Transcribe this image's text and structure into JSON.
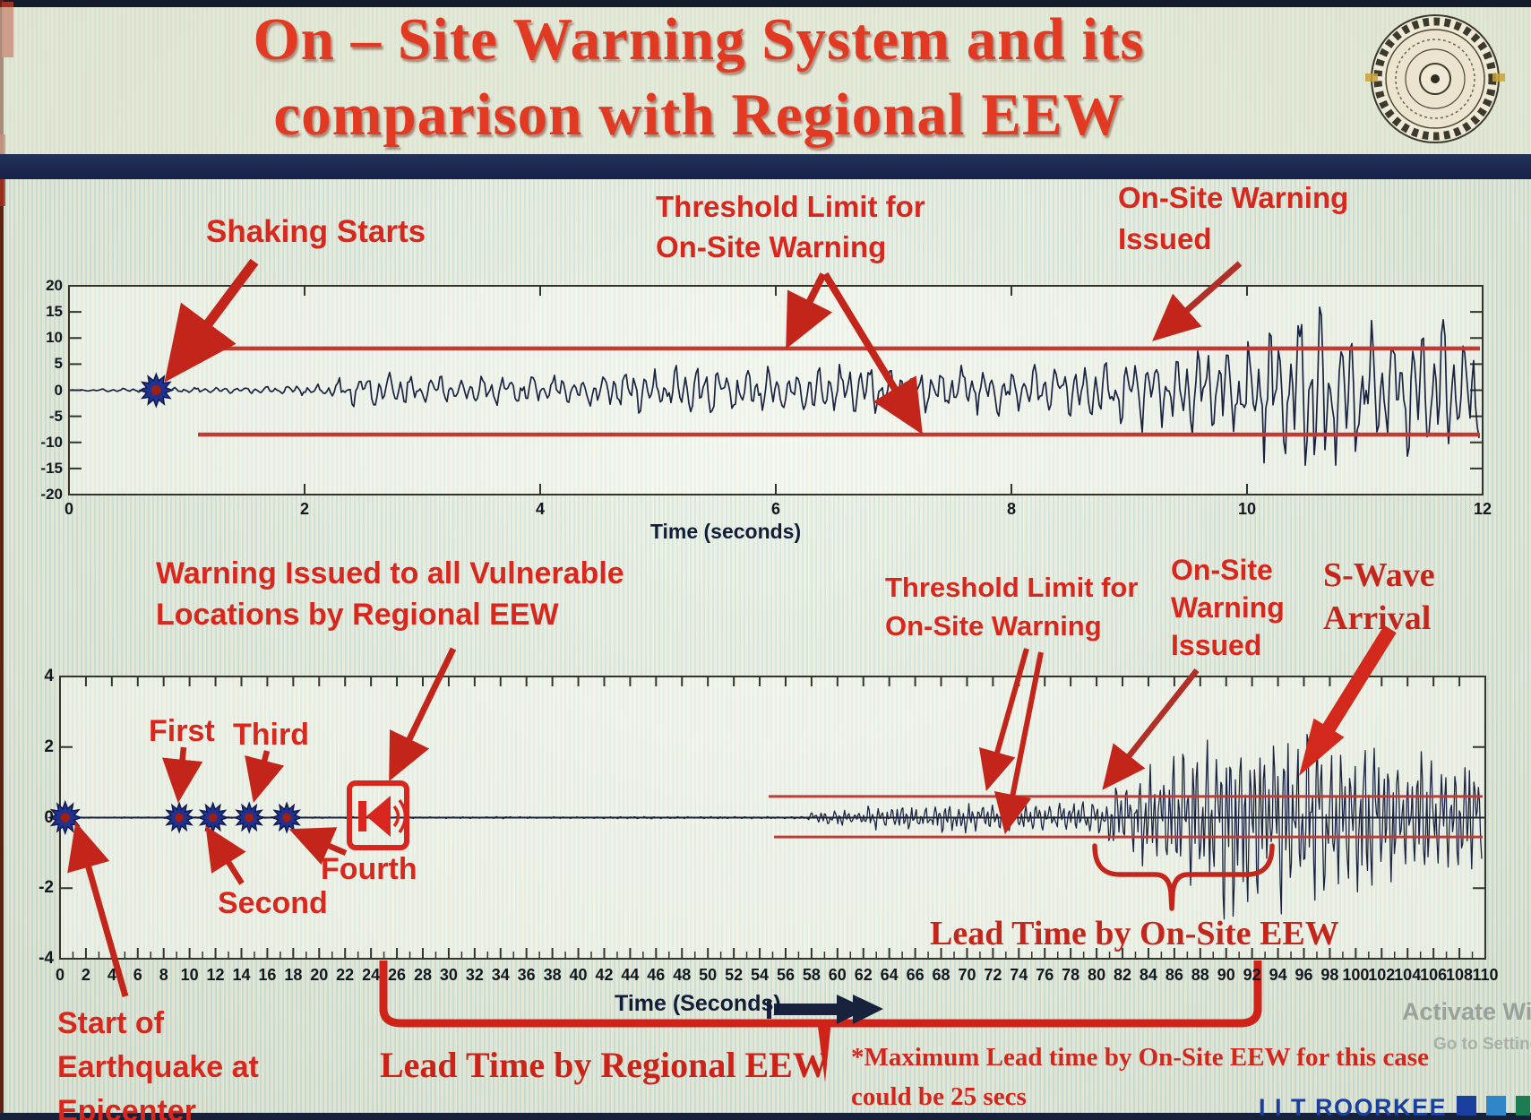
{
  "slide": {
    "title_line1": "On – Site Warning System and its",
    "title_line2": "comparison with Regional EEW",
    "logo_name": "IIT Roorkee emblem"
  },
  "colors": {
    "title_red": "#e23a22",
    "annotation_red": "#d8271d",
    "threshold_red": "#c23a34",
    "arrow_red": "#c3251b",
    "waveform_navy": "#1b2342",
    "brand_navy": "#1b3f9e"
  },
  "top_chart": {
    "xlabel": "Time (seconds)",
    "annotations": {
      "shaking_starts": "Shaking Starts",
      "threshold_line1": "Threshold Limit for",
      "threshold_line2": "On-Site Warning",
      "warning_line1": "On-Site Warning",
      "warning_line2": "Issued"
    }
  },
  "bottom_chart": {
    "xlabel": "Time (Seconds)",
    "annotations": {
      "regional_line1": "Warning Issued to all Vulnerable",
      "regional_line2": "Locations by Regional EEW",
      "first": "First",
      "second": "Second",
      "third": "Third",
      "fourth": "Fourth",
      "start_line1": "Start of",
      "start_line2": "Earthquake at",
      "start_line3": "Epicenter",
      "threshold_line1": "Threshold Limit for",
      "threshold_line2": "On-Site Warning",
      "onsite_line1": "On-Site",
      "onsite_line2": "Warning",
      "onsite_line3": "Issued",
      "swave_line1": "S-Wave",
      "swave_line2": "Arrival",
      "lead_onsite": "Lead Time by On-Site EEW",
      "lead_regional": "Lead Time by Regional EEW"
    }
  },
  "footer": {
    "note_line1": "*Maximum Lead time by On-Site EEW for this case",
    "note_line2": "could be 25 secs",
    "brand": "I I T ROORKEE",
    "brand_squares": [
      "#1b3f9e",
      "#2e86c8",
      "#1c7d52"
    ],
    "watermark_line1": "Activate Wi",
    "watermark_line2": "Go to Setting"
  },
  "chart_data": [
    {
      "id": "onsite-accelerogram",
      "type": "line",
      "title": "",
      "xlabel": "Time (seconds)",
      "ylabel": "",
      "xlim": [
        0,
        12
      ],
      "ylim": [
        -20,
        20
      ],
      "xticks": [
        0,
        2,
        4,
        6,
        8,
        10,
        12
      ],
      "yticks": [
        20,
        15,
        10,
        5,
        0,
        -5,
        -10,
        -15,
        -20
      ],
      "grid": false,
      "threshold_upper": 8,
      "threshold_lower": -8.5,
      "shaking_start_t": 0.74,
      "warning_issued_t": 9.2,
      "event_markers": [
        {
          "t": 0.74,
          "v": 0,
          "label": "Shaking Starts"
        }
      ],
      "amplitude_envelope": [
        [
          0,
          0.06
        ],
        [
          0.74,
          0.5
        ],
        [
          1.1,
          0.55
        ],
        [
          1.6,
          0.7
        ],
        [
          2.1,
          1.0
        ],
        [
          2.35,
          2.6
        ],
        [
          2.6,
          3.9
        ],
        [
          2.9,
          3.4
        ],
        [
          3.3,
          2.3
        ],
        [
          3.7,
          2.8
        ],
        [
          4.1,
          3.1
        ],
        [
          4.6,
          3.9
        ],
        [
          5.1,
          4.4
        ],
        [
          5.6,
          4.9
        ],
        [
          6.1,
          4.3
        ],
        [
          6.6,
          5.3
        ],
        [
          7.1,
          4.2
        ],
        [
          7.6,
          4.9
        ],
        [
          8.1,
          4.5
        ],
        [
          8.55,
          5.1
        ],
        [
          8.9,
          6.2
        ],
        [
          9.15,
          8.3
        ],
        [
          9.4,
          6.5
        ],
        [
          9.6,
          10.5
        ],
        [
          9.85,
          8.5
        ],
        [
          10.1,
          12.5
        ],
        [
          10.35,
          16
        ],
        [
          10.6,
          17
        ],
        [
          10.85,
          14.5
        ],
        [
          11.1,
          12.5
        ],
        [
          11.35,
          14
        ],
        [
          11.6,
          15
        ],
        [
          11.8,
          12.5
        ],
        [
          12,
          9.5
        ]
      ]
    },
    {
      "id": "regional-comparison-accelerogram",
      "type": "line",
      "title": "",
      "xlabel": "Time (Seconds)",
      "ylabel": "",
      "xlim": [
        0,
        110
      ],
      "ylim": [
        -4,
        4
      ],
      "xticks": [
        0,
        2,
        4,
        6,
        8,
        10,
        12,
        14,
        16,
        18,
        20,
        22,
        24,
        26,
        28,
        30,
        32,
        34,
        36,
        38,
        40,
        42,
        44,
        46,
        48,
        50,
        52,
        54,
        56,
        58,
        60,
        62,
        64,
        66,
        68,
        70,
        72,
        74,
        76,
        78,
        80,
        82,
        84,
        86,
        88,
        90,
        92,
        94,
        96,
        98,
        100,
        102,
        104,
        106,
        108,
        110
      ],
      "yticks": [
        4,
        2,
        0,
        -2,
        -4
      ],
      "grid": false,
      "threshold_upper": 0.6,
      "threshold_lower": -0.55,
      "p_wave_detections": [
        {
          "t": 0.4,
          "label": "Start of Earthquake at Epicenter"
        },
        {
          "t": 9.2,
          "label": "First"
        },
        {
          "t": 11.8,
          "label": "Second"
        },
        {
          "t": 14.6,
          "label": "Third"
        },
        {
          "t": 17.5,
          "label": "Fourth"
        }
      ],
      "regional_warning_t": 24.7,
      "onsite_warning_t": 80.5,
      "s_wave_arrival_t": 94,
      "lead_time_regional_span": [
        24.7,
        92.5
      ],
      "lead_time_onsite_span": [
        80,
        93.8
      ],
      "wave_start_t": 58,
      "amplitude_envelope": [
        [
          0,
          0.02
        ],
        [
          57.5,
          0.03
        ],
        [
          58,
          0.12
        ],
        [
          59,
          0.2
        ],
        [
          60,
          0.27
        ],
        [
          61,
          0.22
        ],
        [
          62,
          0.3
        ],
        [
          63,
          0.36
        ],
        [
          64,
          0.3
        ],
        [
          65,
          0.34
        ],
        [
          66,
          0.28
        ],
        [
          67,
          0.36
        ],
        [
          68,
          0.4
        ],
        [
          69,
          0.34
        ],
        [
          70,
          0.42
        ],
        [
          71,
          0.36
        ],
        [
          72,
          0.4
        ],
        [
          73,
          0.35
        ],
        [
          74,
          0.42
        ],
        [
          75,
          0.38
        ],
        [
          76,
          0.44
        ],
        [
          77,
          0.4
        ],
        [
          78,
          0.47
        ],
        [
          79,
          0.45
        ],
        [
          80,
          0.58
        ],
        [
          81,
          0.72
        ],
        [
          82,
          0.88
        ],
        [
          83,
          1.15
        ],
        [
          84,
          1.45
        ],
        [
          85,
          1.25
        ],
        [
          86,
          1.65
        ],
        [
          87,
          2.05
        ],
        [
          88,
          2.6
        ],
        [
          89,
          2.25
        ],
        [
          90,
          2.85
        ],
        [
          91,
          2.45
        ],
        [
          92,
          2.65
        ],
        [
          93,
          2.25
        ],
        [
          94,
          2.55
        ],
        [
          95,
          2.65
        ],
        [
          96,
          2.25
        ],
        [
          97,
          2.45
        ],
        [
          98,
          2.05
        ],
        [
          99,
          2.35
        ],
        [
          100,
          1.95
        ],
        [
          101,
          2.25
        ],
        [
          102,
          1.85
        ],
        [
          103,
          2.05
        ],
        [
          104,
          1.65
        ],
        [
          105,
          1.85
        ],
        [
          106,
          1.45
        ],
        [
          107,
          1.65
        ],
        [
          108,
          1.25
        ],
        [
          109,
          1.45
        ],
        [
          110,
          1.15
        ]
      ]
    }
  ]
}
